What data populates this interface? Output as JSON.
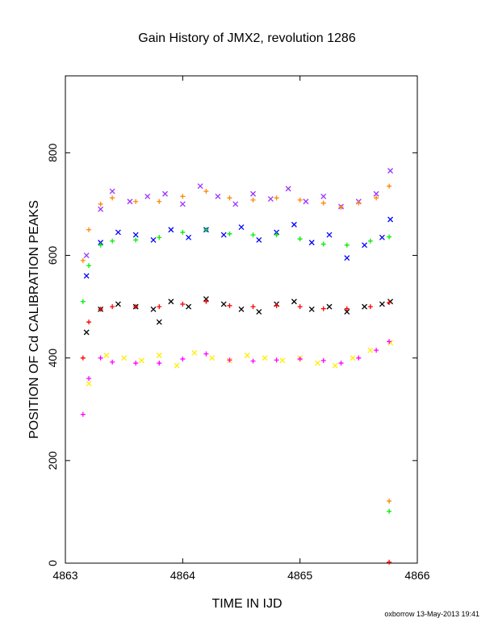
{
  "chart_data": {
    "type": "scatter",
    "title": "Gain History of JMX2, revolution 1286",
    "xlabel": "TIME IN IJD",
    "ylabel": "POSITION OF Cd CALIBRATION PEAKS",
    "xlim": [
      4863,
      4866
    ],
    "ylim": [
      0,
      950
    ],
    "x_ticks": [
      4863,
      4864,
      4865,
      4866
    ],
    "y_ticks": [
      0,
      200,
      400,
      600,
      800
    ],
    "grid": false,
    "legend": "none",
    "series": [
      {
        "color": "#9933ff",
        "marker": "x",
        "x": [
          4863.18,
          4863.3,
          4863.4,
          4863.55,
          4863.7,
          4863.85,
          4864.0,
          4864.15,
          4864.3,
          4864.45,
          4864.6,
          4864.75,
          4864.9,
          4865.05,
          4865.2,
          4865.35,
          4865.5,
          4865.65,
          4865.77
        ],
        "y": [
          600,
          690,
          725,
          705,
          715,
          720,
          700,
          735,
          715,
          700,
          720,
          710,
          730,
          705,
          715,
          695,
          705,
          720,
          765
        ]
      },
      {
        "color": "#ff8800",
        "marker": "+",
        "x": [
          4863.15,
          4863.2,
          4863.3,
          4863.4,
          4863.6,
          4863.8,
          4864.0,
          4864.2,
          4864.4,
          4864.6,
          4864.8,
          4865.0,
          4865.2,
          4865.35,
          4865.5,
          4865.65,
          4865.76
        ],
        "y": [
          590,
          650,
          700,
          712,
          705,
          705,
          715,
          725,
          712,
          708,
          712,
          708,
          702,
          694,
          702,
          712,
          735
        ]
      },
      {
        "color": "#0000ff",
        "marker": "x",
        "x": [
          4863.18,
          4863.3,
          4863.45,
          4863.6,
          4863.75,
          4863.9,
          4864.05,
          4864.2,
          4864.35,
          4864.5,
          4864.65,
          4864.8,
          4864.95,
          4865.1,
          4865.25,
          4865.4,
          4865.55,
          4865.7,
          4865.77
        ],
        "y": [
          560,
          625,
          645,
          640,
          630,
          650,
          635,
          650,
          640,
          655,
          630,
          645,
          660,
          625,
          640,
          595,
          620,
          635,
          670
        ]
      },
      {
        "color": "#00ee00",
        "marker": "+",
        "x": [
          4863.15,
          4863.2,
          4863.3,
          4863.4,
          4863.6,
          4863.8,
          4864.0,
          4864.2,
          4864.4,
          4864.6,
          4864.8,
          4865.0,
          4865.2,
          4865.4,
          4865.6,
          4865.76
        ],
        "y": [
          510,
          580,
          620,
          628,
          630,
          635,
          645,
          650,
          642,
          640,
          640,
          632,
          622,
          620,
          628,
          636
        ]
      },
      {
        "color": "#000000",
        "marker": "x",
        "x": [
          4863.18,
          4863.3,
          4863.45,
          4863.6,
          4863.75,
          4863.8,
          4863.9,
          4864.05,
          4864.2,
          4864.35,
          4864.5,
          4864.65,
          4864.8,
          4864.95,
          4865.1,
          4865.25,
          4865.4,
          4865.55,
          4865.7,
          4865.77
        ],
        "y": [
          450,
          495,
          505,
          500,
          495,
          470,
          510,
          500,
          515,
          505,
          495,
          490,
          505,
          510,
          495,
          500,
          490,
          500,
          505,
          510
        ]
      },
      {
        "color": "#ff0000",
        "marker": "+",
        "x": [
          4863.15,
          4863.2,
          4863.3,
          4863.4,
          4863.6,
          4863.8,
          4864.0,
          4864.2,
          4864.4,
          4864.6,
          4864.8,
          4865.0,
          4865.2,
          4865.4,
          4865.6,
          4865.76
        ],
        "y": [
          400,
          470,
          495,
          500,
          500,
          500,
          505,
          510,
          502,
          500,
          502,
          500,
          496,
          496,
          500,
          508
        ]
      },
      {
        "color": "#ffee00",
        "marker": "x",
        "x": [
          4863.2,
          4863.35,
          4863.5,
          4863.65,
          4863.8,
          4863.95,
          4864.1,
          4864.25,
          4864.4,
          4864.55,
          4864.7,
          4864.85,
          4865.0,
          4865.15,
          4865.3,
          4865.45,
          4865.6,
          4865.77
        ],
        "y": [
          350,
          405,
          400,
          395,
          405,
          385,
          410,
          400,
          395,
          405,
          400,
          395,
          400,
          390,
          385,
          400,
          415,
          430
        ]
      },
      {
        "color": "#ff00ff",
        "marker": "+",
        "x": [
          4863.15,
          4863.2,
          4863.3,
          4863.4,
          4863.6,
          4863.8,
          4864.0,
          4864.2,
          4864.4,
          4864.6,
          4864.8,
          4865.0,
          4865.2,
          4865.35,
          4865.5,
          4865.65,
          4865.76
        ],
        "y": [
          290,
          360,
          400,
          392,
          390,
          390,
          398,
          408,
          396,
          394,
          396,
          398,
          395,
          390,
          400,
          415,
          432
        ]
      },
      {
        "color": "#ff8800",
        "marker": "+",
        "x": [
          4865.76
        ],
        "y": [
          121
        ]
      },
      {
        "color": "#00ee00",
        "marker": "+",
        "x": [
          4865.76
        ],
        "y": [
          101
        ]
      },
      {
        "color": "#ff0000",
        "marker": "+",
        "x": [
          4865.76
        ],
        "y": [
          2
        ]
      }
    ]
  },
  "footer": {
    "credit": "oxborrow 13-May-2013 19:41"
  }
}
